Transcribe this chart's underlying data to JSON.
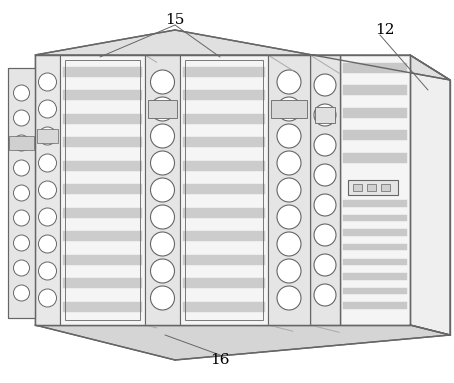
{
  "background_color": "#ffffff",
  "line_color": "#aaaaaa",
  "dark_line_color": "#666666",
  "label_12": "12",
  "label_15": "15",
  "label_16": "16",
  "label_fontsize": 11,
  "figsize": [
    4.54,
    3.83
  ],
  "dpi": 100,
  "fill_main": "#f7f7f7",
  "fill_side": "#e8e8e8",
  "fill_top": "#dddddd",
  "fill_stripe": "#c8c8c8",
  "fill_divider": "#e0e0e0",
  "fill_right_box": "#f0f0f0"
}
